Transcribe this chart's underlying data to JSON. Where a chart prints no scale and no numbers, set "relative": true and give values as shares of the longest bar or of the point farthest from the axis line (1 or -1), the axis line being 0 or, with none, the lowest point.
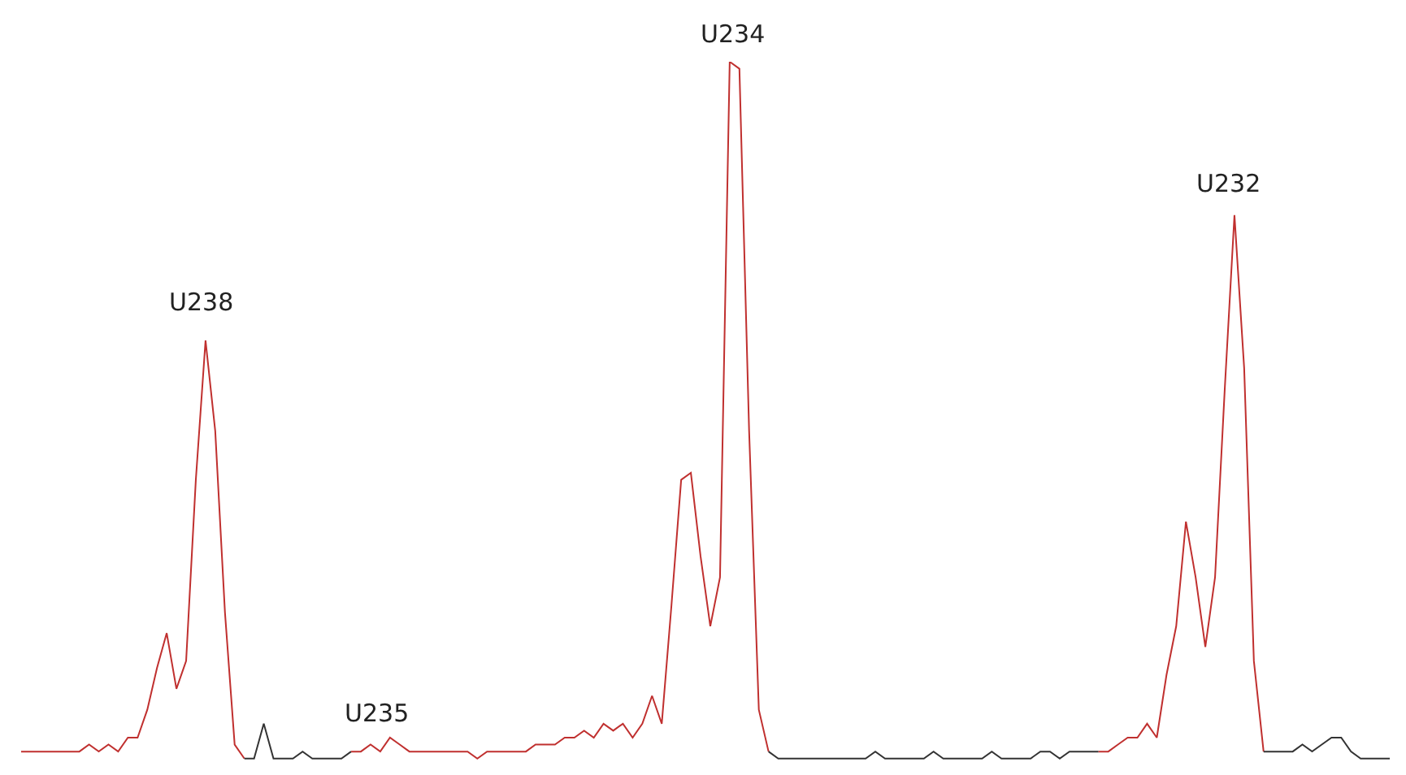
{
  "chart_data": {
    "type": "line",
    "relative": true,
    "categories": [
      null,
      null,
      null,
      null,
      null,
      null,
      null,
      null,
      null,
      null,
      null,
      null,
      null,
      null,
      null,
      null,
      null,
      null,
      null,
      null,
      null,
      null,
      null,
      null,
      null,
      null,
      null,
      null,
      null,
      null,
      null,
      null,
      null,
      null,
      null,
      null,
      null,
      null,
      null,
      null,
      null,
      null,
      null,
      null,
      null,
      null,
      null,
      null,
      null,
      null,
      null,
      null,
      null,
      null,
      null,
      null,
      null,
      null,
      null,
      null,
      null,
      null,
      null,
      null,
      null,
      null,
      null,
      null,
      null,
      null,
      null,
      null,
      null,
      null,
      null,
      null,
      null,
      null,
      null,
      null,
      null,
      null,
      null,
      null,
      null,
      null,
      null,
      null,
      null,
      null,
      null,
      null,
      null,
      null,
      null,
      null,
      null,
      null,
      null,
      null,
      null,
      null,
      null,
      null,
      null,
      null,
      null,
      null,
      null,
      null,
      null,
      null,
      null,
      null,
      null,
      null,
      null,
      null,
      null,
      null,
      null,
      null,
      null,
      null,
      null,
      null,
      null,
      null,
      null,
      null,
      null,
      null,
      null,
      null,
      null,
      null,
      null,
      null,
      null,
      null,
      null,
      null
    ],
    "series": [
      {
        "color": "#c0302f",
        "values": [
          0.01,
          0.01,
          0.01,
          0.01,
          0.01,
          0.01,
          0.01,
          0.02,
          0.01,
          0.02,
          0.01,
          0.03,
          0.03,
          0.07,
          0.13,
          0.18,
          0.1,
          0.14,
          0.4,
          0.6,
          0.47,
          0.21,
          0.02,
          0.0,
          null,
          null,
          null,
          null,
          null,
          null,
          null,
          null,
          null,
          null,
          null,
          null,
          null,
          null,
          null,
          null,
          null,
          null,
          null,
          null,
          null,
          null,
          null,
          null,
          null,
          null,
          null,
          null,
          null,
          null,
          null,
          null,
          null,
          null,
          null,
          null,
          null,
          null,
          null,
          null,
          null,
          null,
          null,
          null,
          null,
          null,
          null,
          null,
          null,
          null,
          null,
          null,
          null,
          null,
          null,
          null,
          null,
          null,
          null,
          null,
          null,
          null,
          null,
          null,
          null,
          null,
          null,
          null,
          null,
          null,
          null,
          null,
          null,
          null,
          null,
          null,
          null,
          null,
          null,
          null,
          null,
          null,
          null,
          null,
          null,
          null,
          null,
          null,
          null,
          null,
          null,
          null,
          null,
          null,
          null,
          null,
          null,
          null,
          null,
          null,
          null,
          null,
          null,
          null,
          null,
          null,
          null,
          null,
          null,
          null,
          null,
          null,
          null,
          null,
          null,
          null,
          null,
          null
        ]
      },
      {
        "color": "#333333",
        "values": [
          null,
          null,
          null,
          null,
          null,
          null,
          null,
          null,
          null,
          null,
          null,
          null,
          null,
          null,
          null,
          null,
          null,
          null,
          null,
          null,
          null,
          null,
          null,
          0.0,
          0.0,
          0.05,
          0.0,
          0.0,
          0.0,
          0.01,
          0.0,
          0.0,
          0.0,
          0.0,
          0.01,
          null,
          null,
          null,
          null,
          null,
          null,
          null,
          null,
          null,
          null,
          null,
          null,
          null,
          null,
          null,
          null,
          null,
          null,
          null,
          null,
          null,
          null,
          null,
          null,
          null,
          null,
          null,
          null,
          null,
          null,
          null,
          null,
          null,
          null,
          null,
          null,
          null,
          null,
          null,
          null,
          null,
          null,
          null,
          null,
          null,
          null,
          null,
          null,
          null,
          null,
          null,
          null,
          null,
          null,
          null,
          null,
          null,
          null,
          null,
          null,
          null,
          null,
          null,
          null,
          null,
          null,
          null,
          null,
          null,
          null,
          null,
          null,
          null,
          null,
          null,
          null,
          null,
          null,
          null,
          null,
          null,
          null,
          null,
          null,
          null,
          null,
          null,
          null,
          null,
          null,
          null,
          null,
          null,
          null,
          null,
          null,
          null,
          null,
          null,
          null,
          null,
          null,
          null,
          null,
          null,
          null,
          null
        ]
      },
      {
        "color": "#c0302f",
        "values": [
          null,
          null,
          null,
          null,
          null,
          null,
          null,
          null,
          null,
          null,
          null,
          null,
          null,
          null,
          null,
          null,
          null,
          null,
          null,
          null,
          null,
          null,
          null,
          null,
          null,
          null,
          null,
          null,
          null,
          null,
          null,
          null,
          null,
          null,
          0.01,
          0.01,
          0.02,
          0.01,
          0.03,
          0.02,
          0.01,
          0.01,
          0.01,
          0.01,
          0.01,
          0.01,
          0.01,
          0.0,
          0.01,
          0.01,
          0.01,
          0.01,
          0.01,
          0.02,
          0.02,
          0.02,
          0.03,
          0.03,
          0.04,
          0.03,
          0.05,
          0.04,
          0.05,
          0.03,
          0.05,
          0.09,
          0.05,
          0.22,
          0.4,
          0.41,
          0.29,
          0.19,
          0.26,
          1,
          0.99,
          0.47,
          0.07,
          0.01,
          null,
          null,
          null,
          null,
          null,
          null,
          null,
          null,
          null,
          null,
          null,
          null,
          null,
          null,
          null,
          null,
          null,
          null,
          null,
          null,
          null,
          null,
          null,
          null,
          null,
          null,
          null,
          null,
          null,
          null,
          null,
          null,
          null,
          null,
          null,
          null,
          null,
          null,
          null,
          null,
          null,
          null,
          null,
          null,
          null,
          null,
          null,
          null,
          null,
          null,
          null,
          null,
          null,
          null,
          null,
          null,
          null,
          null,
          null,
          null,
          null,
          null,
          null,
          null
        ]
      },
      {
        "color": "#333333",
        "values": [
          null,
          null,
          null,
          null,
          null,
          null,
          null,
          null,
          null,
          null,
          null,
          null,
          null,
          null,
          null,
          null,
          null,
          null,
          null,
          null,
          null,
          null,
          null,
          null,
          null,
          null,
          null,
          null,
          null,
          null,
          null,
          null,
          null,
          null,
          null,
          null,
          null,
          null,
          null,
          null,
          null,
          null,
          null,
          null,
          null,
          null,
          null,
          null,
          null,
          null,
          null,
          null,
          null,
          null,
          null,
          null,
          null,
          null,
          null,
          null,
          null,
          null,
          null,
          null,
          null,
          null,
          null,
          null,
          null,
          null,
          null,
          null,
          null,
          null,
          null,
          null,
          null,
          0.01,
          0.0,
          0.0,
          0.0,
          0.0,
          0.0,
          0.0,
          0.0,
          0.0,
          0.0,
          0.0,
          0.01,
          0.0,
          0.0,
          0.0,
          0.0,
          0.0,
          0.01,
          0.0,
          0.0,
          0.0,
          0.0,
          0.0,
          0.01,
          0.0,
          0.0,
          0.0,
          0.0,
          0.01,
          0.01,
          0.0,
          0.01,
          0.01,
          0.01,
          0.01,
          null,
          null,
          null,
          null,
          null,
          null,
          null,
          null,
          null,
          null,
          null,
          null,
          null,
          null,
          null,
          null,
          null,
          null,
          null,
          null,
          null,
          null,
          null,
          null,
          null,
          null,
          null,
          null,
          null,
          null
        ]
      },
      {
        "color": "#c0302f",
        "values": [
          null,
          null,
          null,
          null,
          null,
          null,
          null,
          null,
          null,
          null,
          null,
          null,
          null,
          null,
          null,
          null,
          null,
          null,
          null,
          null,
          null,
          null,
          null,
          null,
          null,
          null,
          null,
          null,
          null,
          null,
          null,
          null,
          null,
          null,
          null,
          null,
          null,
          null,
          null,
          null,
          null,
          null,
          null,
          null,
          null,
          null,
          null,
          null,
          null,
          null,
          null,
          null,
          null,
          null,
          null,
          null,
          null,
          null,
          null,
          null,
          null,
          null,
          null,
          null,
          null,
          null,
          null,
          null,
          null,
          null,
          null,
          null,
          null,
          null,
          null,
          null,
          null,
          null,
          null,
          null,
          null,
          null,
          null,
          null,
          null,
          null,
          null,
          null,
          null,
          null,
          null,
          null,
          null,
          null,
          null,
          null,
          null,
          null,
          null,
          null,
          null,
          null,
          null,
          null,
          null,
          null,
          null,
          null,
          null,
          null,
          null,
          0.01,
          0.01,
          0.02,
          0.03,
          0.03,
          0.05,
          0.03,
          0.12,
          0.19,
          0.34,
          0.26,
          0.16,
          0.26,
          0.53,
          0.78,
          0.56,
          0.14,
          0.01,
          null,
          null,
          null,
          null,
          null,
          null,
          null,
          null,
          null,
          null,
          null,
          null,
          null
        ]
      },
      {
        "color": "#333333",
        "values": [
          null,
          null,
          null,
          null,
          null,
          null,
          null,
          null,
          null,
          null,
          null,
          null,
          null,
          null,
          null,
          null,
          null,
          null,
          null,
          null,
          null,
          null,
          null,
          null,
          null,
          null,
          null,
          null,
          null,
          null,
          null,
          null,
          null,
          null,
          null,
          null,
          null,
          null,
          null,
          null,
          null,
          null,
          null,
          null,
          null,
          null,
          null,
          null,
          null,
          null,
          null,
          null,
          null,
          null,
          null,
          null,
          null,
          null,
          null,
          null,
          null,
          null,
          null,
          null,
          null,
          null,
          null,
          null,
          null,
          null,
          null,
          null,
          null,
          null,
          null,
          null,
          null,
          null,
          null,
          null,
          null,
          null,
          null,
          null,
          null,
          null,
          null,
          null,
          null,
          null,
          null,
          null,
          null,
          null,
          null,
          null,
          null,
          null,
          null,
          null,
          null,
          null,
          null,
          null,
          null,
          null,
          null,
          null,
          null,
          null,
          null,
          null,
          null,
          null,
          null,
          null,
          null,
          null,
          null,
          null,
          null,
          null,
          null,
          null,
          null,
          null,
          null,
          null,
          0.01,
          0.01,
          0.01,
          0.01,
          0.02,
          0.01,
          0.02,
          0.03,
          0.03,
          0.01,
          0.0,
          0.0,
          0.0,
          0.0
        ]
      }
    ],
    "annotations": [
      "U238",
      "U235",
      "U234",
      "U232"
    ],
    "legend": false
  }
}
